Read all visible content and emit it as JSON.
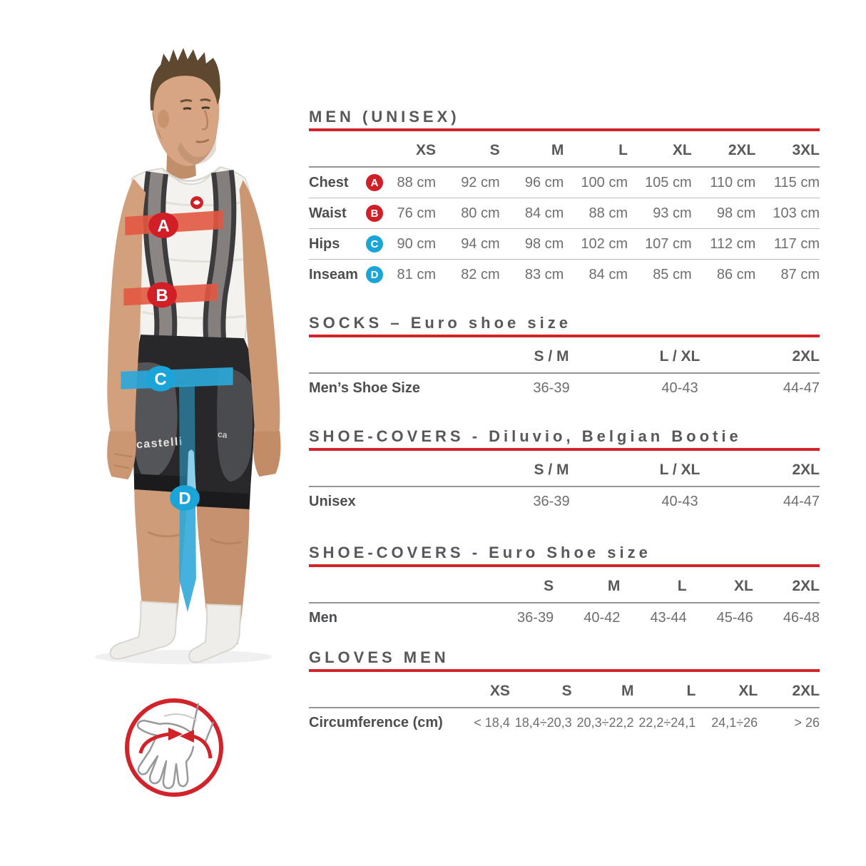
{
  "colors": {
    "accent_red": "#d2232a",
    "marker_red": "#d21f27",
    "marker_blue": "#1ba4d8",
    "band_orange": "#e25840",
    "band_cyan": "#2ba7d9",
    "title_gray": "#57585a",
    "value_gray": "#6d6e71"
  },
  "figure": {
    "markers": [
      "A",
      "B",
      "C",
      "D"
    ],
    "shorts_brand": "castelli",
    "shorts_brand_partial": "ca",
    "chest_logo": "castelli-scorpion-logo",
    "hand_icon": "glove-circumference-measurement"
  },
  "sections": [
    {
      "title": "MEN (UNISEX)",
      "columns": [
        "XS",
        "S",
        "M",
        "L",
        "XL",
        "2XL",
        "3XL"
      ],
      "rows": [
        {
          "label": "Chest",
          "marker": "A",
          "marker_color": "red",
          "values": [
            "88 cm",
            "92 cm",
            "96 cm",
            "100 cm",
            "105 cm",
            "110 cm",
            "115 cm"
          ]
        },
        {
          "label": "Waist",
          "marker": "B",
          "marker_color": "red",
          "values": [
            "76 cm",
            "80 cm",
            "84 cm",
            "88 cm",
            "93 cm",
            "98 cm",
            "103 cm"
          ]
        },
        {
          "label": "Hips",
          "marker": "C",
          "marker_color": "blue",
          "values": [
            "90 cm",
            "94 cm",
            "98 cm",
            "102 cm",
            "107 cm",
            "112 cm",
            "117 cm"
          ]
        },
        {
          "label": "Inseam",
          "marker": "D",
          "marker_color": "blue",
          "values": [
            "81 cm",
            "82 cm",
            "83 cm",
            "84 cm",
            "85 cm",
            "86 cm",
            "87 cm"
          ]
        }
      ]
    },
    {
      "title": "SOCKS – Euro shoe size",
      "columns": [
        "S / M",
        "L / XL",
        "2XL"
      ],
      "rows": [
        {
          "label": "Men’s Shoe Size",
          "values": [
            "36-39",
            "40-43",
            "44-47"
          ]
        }
      ]
    },
    {
      "title": "SHOE-COVERS - Diluvio, Belgian Bootie",
      "columns": [
        "S / M",
        "L / XL",
        "2XL"
      ],
      "rows": [
        {
          "label": "Unisex",
          "values": [
            "36-39",
            "40-43",
            "44-47"
          ]
        }
      ]
    },
    {
      "title": "SHOE-COVERS - Euro Shoe size",
      "columns": [
        "S",
        "M",
        "L",
        "XL",
        "2XL"
      ],
      "rows": [
        {
          "label": "Men",
          "values": [
            "36-39",
            "40-42",
            "43-44",
            "45-46",
            "46-48"
          ]
        }
      ]
    },
    {
      "title": "GLOVES MEN",
      "columns": [
        "XS",
        "S",
        "M",
        "L",
        "XL",
        "2XL"
      ],
      "rows": [
        {
          "label": "Circumference (cm)",
          "values": [
            "< 18,4",
            "18,4÷20,3",
            "20,3÷22,2",
            "22,2÷24,1",
            "24,1÷26",
            "> 26"
          ]
        }
      ]
    }
  ]
}
